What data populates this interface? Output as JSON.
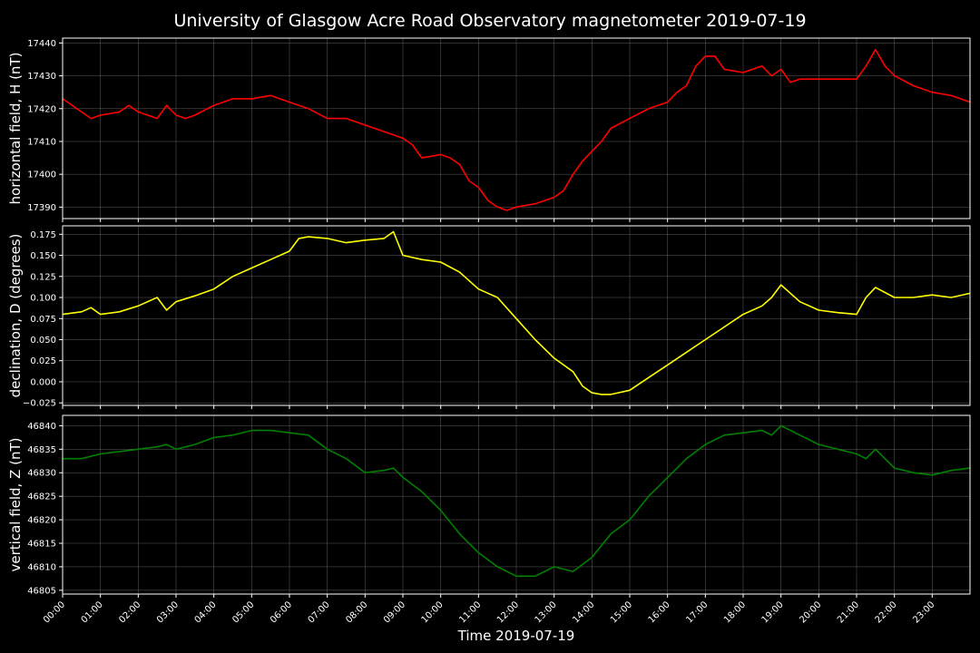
{
  "page": {
    "background": "#000000",
    "text_color": "#ffffff",
    "grid_color": "#777777"
  },
  "chart_data": {
    "type": "line",
    "title": "University of Glasgow Acre Road Observatory magnetometer 2019-07-19",
    "xlabel": "Time 2019-07-19",
    "x_unit": "hours",
    "xlim": [
      0,
      24
    ],
    "x_ticks": [
      "00:00",
      "01:00",
      "02:00",
      "03:00",
      "04:00",
      "05:00",
      "06:00",
      "07:00",
      "08:00",
      "09:00",
      "10:00",
      "11:00",
      "12:00",
      "13:00",
      "14:00",
      "15:00",
      "16:00",
      "17:00",
      "18:00",
      "19:00",
      "20:00",
      "21:00",
      "22:00",
      "23:00"
    ],
    "grid": true,
    "panels": [
      {
        "id": "H",
        "ylabel": "horizontal field, H (nT)",
        "color": "#ff0000",
        "ylim": [
          17386.5,
          17441.5
        ],
        "y_ticks": [
          17390,
          17400,
          17410,
          17420,
          17430,
          17440
        ],
        "y_tick_labels": [
          "17390",
          "17400",
          "17410",
          "17420",
          "17430",
          "17440"
        ],
        "x": [
          0,
          0.5,
          0.75,
          1,
          1.5,
          1.75,
          2,
          2.5,
          2.75,
          3,
          3.25,
          3.5,
          4,
          4.5,
          5,
          5.5,
          6,
          6.5,
          7,
          7.5,
          8,
          8.5,
          9,
          9.25,
          9.5,
          10,
          10.25,
          10.5,
          10.75,
          11,
          11.25,
          11.5,
          11.75,
          12,
          12.5,
          13,
          13.25,
          13.5,
          13.75,
          14,
          14.25,
          14.5,
          15,
          15.5,
          16,
          16.25,
          16.5,
          16.75,
          17,
          17.25,
          17.5,
          18,
          18.5,
          18.75,
          19,
          19.25,
          19.5,
          20,
          20.5,
          21,
          21.25,
          21.5,
          21.75,
          22,
          22.5,
          23,
          23.5,
          24
        ],
        "values": [
          17423,
          17419,
          17417,
          17418,
          17419,
          17421,
          17419,
          17417,
          17421,
          17418,
          17417,
          17418,
          17421,
          17423,
          17423,
          17424,
          17422,
          17420,
          17417,
          17417,
          17415,
          17413,
          17411,
          17409,
          17405,
          17406,
          17405,
          17403,
          17398,
          17396,
          17392,
          17390,
          17389,
          17390,
          17391,
          17393,
          17395,
          17400,
          17404,
          17407,
          17410,
          17414,
          17417,
          17420,
          17422,
          17425,
          17427,
          17433,
          17436,
          17436,
          17432,
          17431,
          17433,
          17430,
          17432,
          17428,
          17429,
          17429,
          17429,
          17429,
          17433,
          17438,
          17433,
          17430,
          17427,
          17425,
          17424,
          17422
        ]
      },
      {
        "id": "D",
        "ylabel": "declination, D (degrees)",
        "color": "#ffff00",
        "ylim": [
          -0.028,
          0.185
        ],
        "y_ticks": [
          -0.025,
          0,
          0.025,
          0.05,
          0.075,
          0.1,
          0.125,
          0.15,
          0.175
        ],
        "y_tick_labels": [
          "−0.025",
          "0.000",
          "0.025",
          "0.050",
          "0.075",
          "0.100",
          "0.125",
          "0.150",
          "0.175"
        ],
        "x": [
          0,
          0.5,
          0.75,
          1,
          1.5,
          2,
          2.5,
          2.75,
          3,
          3.5,
          4,
          4.5,
          5,
          5.5,
          6,
          6.25,
          6.5,
          7,
          7.5,
          8,
          8.5,
          8.75,
          9,
          9.5,
          10,
          10.5,
          11,
          11.5,
          12,
          12.5,
          13,
          13.5,
          13.75,
          14,
          14.25,
          14.5,
          15,
          15.5,
          16,
          16.5,
          17,
          17.5,
          18,
          18.5,
          18.75,
          19,
          19.5,
          20,
          20.5,
          21,
          21.25,
          21.5,
          22,
          22.5,
          23,
          23.5,
          24
        ],
        "values": [
          0.08,
          0.083,
          0.088,
          0.08,
          0.083,
          0.09,
          0.1,
          0.085,
          0.095,
          0.102,
          0.11,
          0.125,
          0.135,
          0.145,
          0.155,
          0.17,
          0.172,
          0.17,
          0.165,
          0.168,
          0.17,
          0.178,
          0.15,
          0.145,
          0.142,
          0.13,
          0.11,
          0.1,
          0.075,
          0.05,
          0.028,
          0.012,
          -0.005,
          -0.013,
          -0.015,
          -0.015,
          -0.01,
          0.005,
          0.02,
          0.035,
          0.05,
          0.065,
          0.08,
          0.09,
          0.1,
          0.115,
          0.095,
          0.085,
          0.082,
          0.08,
          0.1,
          0.112,
          0.1,
          0.1,
          0.103,
          0.1,
          0.105
        ]
      },
      {
        "id": "Z",
        "ylabel": "vertical field, Z (nT)",
        "color": "#008000",
        "ylim": [
          46804.2,
          46842.2
        ],
        "y_ticks": [
          46805,
          46810,
          46815,
          46820,
          46825,
          46830,
          46835,
          46840
        ],
        "y_tick_labels": [
          "46805",
          "46810",
          "46815",
          "46820",
          "46825",
          "46830",
          "46835",
          "46840"
        ],
        "x": [
          0,
          0.5,
          1,
          1.5,
          2,
          2.5,
          2.75,
          3,
          3.5,
          4,
          4.5,
          5,
          5.5,
          6,
          6.5,
          7,
          7.5,
          8,
          8.5,
          8.75,
          9,
          9.5,
          10,
          10.5,
          11,
          11.5,
          12,
          12.5,
          13,
          13.5,
          14,
          14.5,
          15,
          15.5,
          16,
          16.5,
          17,
          17.5,
          18,
          18.5,
          18.75,
          19,
          19.5,
          20,
          20.5,
          21,
          21.25,
          21.5,
          22,
          22.5,
          23,
          23.5,
          24
        ],
        "values": [
          46833,
          46833,
          46834,
          46834.5,
          46835,
          46835.5,
          46836,
          46835,
          46836,
          46837.5,
          46838,
          46839,
          46839,
          46838.5,
          46838,
          46835,
          46833,
          46830,
          46830.5,
          46831,
          46829,
          46826,
          46822,
          46817,
          46813,
          46810,
          46808,
          46808,
          46810,
          46809,
          46812,
          46817,
          46820,
          46825,
          46829,
          46833,
          46836,
          46838,
          46838.5,
          46839,
          46838,
          46840,
          46838,
          46836,
          46835,
          46834,
          46833,
          46835,
          46831,
          46830,
          46829.5,
          46830.5,
          46831
        ]
      }
    ]
  }
}
